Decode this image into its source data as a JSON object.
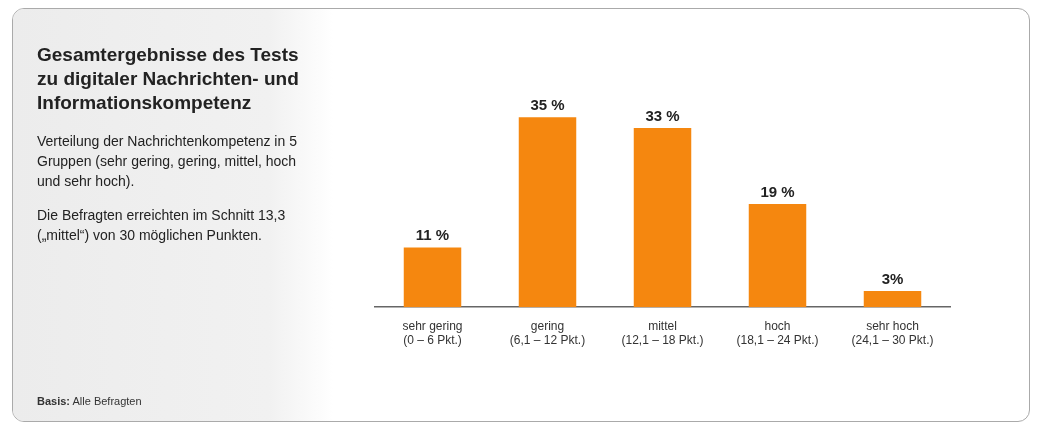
{
  "chart_data": {
    "type": "bar",
    "title": "Gesamtergebnisse des Tests zu digitaler Nachrichten- und Informationskompetenz",
    "subtitle": "Verteilung der Nachrichtenkompetenz in 5 Gruppen (sehr gering, gering, mittel, hoch und sehr hoch).",
    "annotations": [
      "Die Befragten erreichten im Schnitt 13,3 („mittel“) von 30 möglichen Punkten.",
      "Basis: Alle Befragten"
    ],
    "categories": [
      "sehr gering\n(0 – 6 Pkt.)",
      "gering\n(6,1 – 12 Pkt.)",
      "mittel\n(12,1 – 18 Pkt.)",
      "hoch\n(18,1 – 24 Pkt.)",
      "sehr hoch\n(24,1 – 30 Pkt.)"
    ],
    "values": [
      11,
      35,
      33,
      19,
      3
    ],
    "value_labels": [
      "11 %",
      "35 %",
      "33 %",
      "19 %",
      "3%"
    ],
    "color": "#f5870f"
  }
}
